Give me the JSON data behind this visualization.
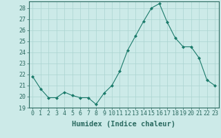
{
  "x": [
    0,
    1,
    2,
    3,
    4,
    5,
    6,
    7,
    8,
    9,
    10,
    11,
    12,
    13,
    14,
    15,
    16,
    17,
    18,
    19,
    20,
    21,
    22,
    23
  ],
  "y": [
    21.8,
    20.7,
    19.9,
    19.9,
    20.4,
    20.1,
    19.9,
    19.9,
    19.3,
    20.3,
    21.0,
    22.3,
    24.2,
    25.5,
    26.8,
    28.0,
    28.4,
    26.7,
    25.3,
    24.5,
    24.5,
    23.5,
    21.5,
    21.0
  ],
  "line_color": "#1a7a6a",
  "marker": "D",
  "marker_size": 2,
  "bg_color": "#cceae8",
  "grid_color": "#aad4d0",
  "xlabel": "Humidex (Indice chaleur)",
  "ylim": [
    19,
    28.6
  ],
  "xlim": [
    -0.5,
    23.5
  ],
  "yticks": [
    19,
    20,
    21,
    22,
    23,
    24,
    25,
    26,
    27,
    28
  ],
  "xticks": [
    0,
    1,
    2,
    3,
    4,
    5,
    6,
    7,
    8,
    9,
    10,
    11,
    12,
    13,
    14,
    15,
    16,
    17,
    18,
    19,
    20,
    21,
    22,
    23
  ],
  "xtick_labels": [
    "0",
    "1",
    "2",
    "3",
    "4",
    "5",
    "6",
    "7",
    "8",
    "9",
    "10",
    "11",
    "12",
    "13",
    "14",
    "15",
    "16",
    "17",
    "18",
    "19",
    "20",
    "21",
    "22",
    "23"
  ],
  "axis_color": "#2a6a60",
  "tick_color": "#2a6a60",
  "tick_fontsize": 6.0,
  "xlabel_fontsize": 7.5
}
